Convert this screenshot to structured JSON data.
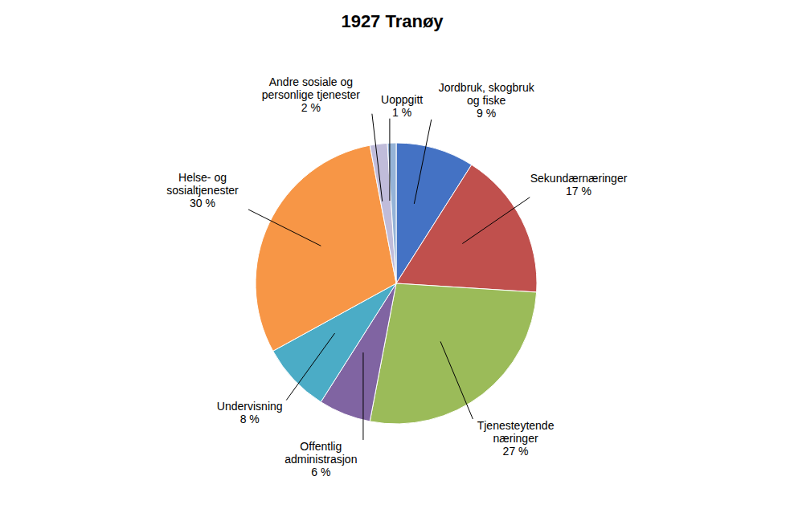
{
  "chart_data": {
    "type": "pie",
    "title": "1927 Tranøy",
    "categories": [
      "Jordbruk, skogbruk\nog fiske\n9 %",
      "Sekundærnæringer\n17 %",
      "Tjenesteytende\nnæringer\n27 %",
      "Offentlig\nadministrasjon\n6 %",
      "Undervisning\n8 %",
      "Helse- og\nsosialtjenester\n30 %",
      "Andre sosiale og\npersonlige tjenester\n2 %",
      "Uoppgitt\n1 %"
    ],
    "values": [
      9,
      17,
      27,
      6,
      8,
      30,
      2,
      1
    ],
    "colors": [
      "#4472C4",
      "#C0504D",
      "#9BBB59",
      "#8064A2",
      "#4BACC6",
      "#F79646",
      "#C0BCDA",
      "#95B3D7"
    ]
  }
}
